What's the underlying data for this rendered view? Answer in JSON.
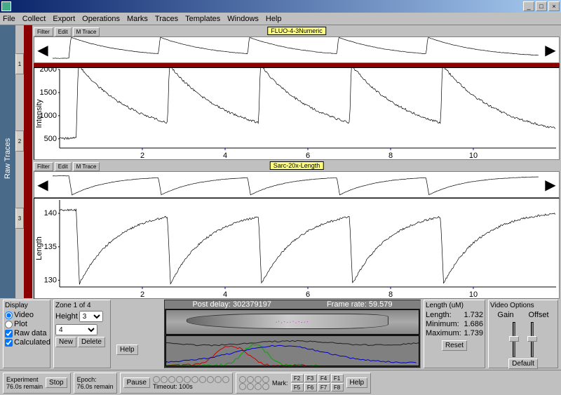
{
  "title": "",
  "menu": [
    "File",
    "Collect",
    "Export",
    "Operations",
    "Marks",
    "Traces",
    "Templates",
    "Windows",
    "Help"
  ],
  "sidebar_label": "Raw Traces",
  "trace1": {
    "label": "FLUO-4-3Numeric",
    "btns": [
      "Filter",
      "Edit",
      "M Trace"
    ],
    "ylim": [
      300,
      2000
    ],
    "yticks": [
      500,
      1000,
      1500,
      2000
    ],
    "xlim": [
      0,
      12
    ],
    "xticks": [
      2,
      4,
      6,
      8,
      10
    ],
    "ylabel": "Intensity",
    "baseline": 510,
    "peak": 2100,
    "decay": 1.4,
    "spike_times": [
      0.4,
      2.6,
      4.8,
      7.0,
      9.2
    ],
    "colors": {
      "bg": "#ffffff",
      "line": "#000000",
      "tick": "#0000ff"
    }
  },
  "trace2": {
    "label": "Sarc-20x-Length",
    "btns": [
      "Filter",
      "Edit",
      "M Trace"
    ],
    "ylim": [
      129,
      142
    ],
    "yticks": [
      130,
      135,
      140
    ],
    "xlim": [
      0,
      12
    ],
    "xticks": [
      2,
      4,
      6,
      8,
      10
    ],
    "ylabel": "Length",
    "baseline": 140.5,
    "trough": 129.5,
    "recover": 0.9,
    "spike_times": [
      0.4,
      2.6,
      4.8,
      7.0,
      9.2
    ],
    "colors": {
      "bg": "#ffffff",
      "line": "#000000",
      "tick": "#0000ff"
    }
  },
  "display_panel": {
    "title": "Display",
    "video": "Video",
    "plot": "Plot",
    "rawdata": "Raw data",
    "calculated": "Calculated",
    "help": "Help"
  },
  "zone_panel": {
    "title": "Zone 1 of 4",
    "height_lbl": "Height",
    "height_val": "3",
    "new_btn": "New",
    "delete_btn": "Delete"
  },
  "video": {
    "post_delay_lbl": "Post delay:",
    "post_delay": "302379197",
    "framerate_lbl": "Frame rate:",
    "framerate": "59.579",
    "rgb": {
      "red": "#cc0000",
      "green": "#00aa00",
      "blue": "#0000cc",
      "dark": "#202020",
      "bg": "#808080"
    }
  },
  "length_panel": {
    "title": "Length (uM)",
    "length_lbl": "Length:",
    "length": "1.732",
    "min_lbl": "Minimum:",
    "min": "1.686",
    "max_lbl": "Maximum:",
    "max": "1.739",
    "reset": "Reset"
  },
  "video_opts": {
    "title": "Video Options",
    "gain": "Gain",
    "offset": "Offset",
    "min": "-128",
    "max": "255",
    "mid": "128",
    "default_btn": "Default"
  },
  "bottom": {
    "experiment": "Experiment",
    "exp_time": "76.0s remain",
    "stop": "Stop",
    "epoch": "Epoch:",
    "epoch_time": "76.0s remain",
    "pause": "Pause",
    "timeout": "Timeout: 100s",
    "mark": "Mark:",
    "fkeys": [
      "F2",
      "F3",
      "F4",
      "F5",
      "F6",
      "F7",
      "F8",
      "F1"
    ],
    "help": "Help"
  },
  "winbtns": {
    "min": "_",
    "max": "□",
    "close": "×"
  }
}
